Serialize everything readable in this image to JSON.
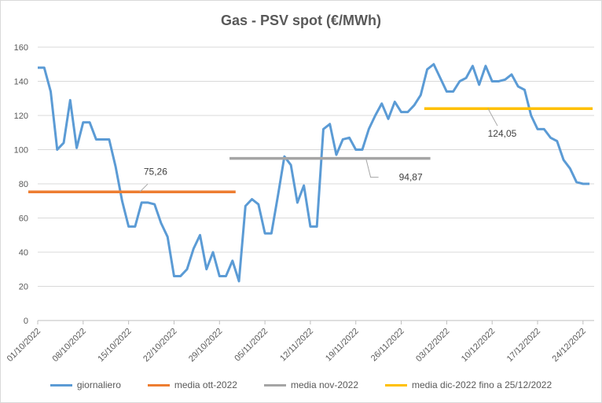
{
  "chart_data": {
    "type": "line",
    "title": "Gas - PSV spot (€/MWh)",
    "xlabel": "",
    "ylabel": "",
    "ylim": [
      0,
      160
    ],
    "yticks": [
      0,
      20,
      40,
      60,
      80,
      100,
      120,
      140,
      160
    ],
    "grid": true,
    "legend_position": "bottom",
    "x_start": "01/10/2022",
    "x_end": "25/12/2022",
    "xtick_labels": [
      "01/10/2022",
      "08/10/2022",
      "15/10/2022",
      "22/10/2022",
      "29/10/2022",
      "05/11/2022",
      "12/11/2022",
      "19/11/2022",
      "26/11/2022",
      "03/12/2022",
      "10/12/2022",
      "17/12/2022",
      "24/12/2022"
    ],
    "series": [
      {
        "name": "giornaliero",
        "color": "#5b9bd5",
        "values": [
          148,
          148,
          134,
          100,
          104,
          129,
          101,
          116,
          116,
          106,
          106,
          106,
          90,
          70,
          55,
          55,
          69,
          69,
          68,
          57,
          49,
          26,
          26,
          30,
          42,
          50,
          30,
          40,
          26,
          26,
          35,
          23,
          67,
          71,
          68,
          51,
          51,
          73,
          96,
          91,
          69,
          79,
          55,
          55,
          112,
          115,
          97,
          106,
          107,
          100,
          100,
          112,
          120,
          127,
          118,
          128,
          122,
          122,
          126,
          132,
          147,
          150,
          142,
          134,
          134,
          140,
          142,
          149,
          138,
          149,
          140,
          140,
          141,
          144,
          137,
          135,
          120,
          112,
          112,
          107,
          105,
          94,
          89,
          81,
          80,
          80
        ]
      },
      {
        "name": "media ott-2022",
        "color": "#ed7d31",
        "value": 75.26,
        "label": "75,26",
        "from": "01/10/2022",
        "to": "31/10/2022"
      },
      {
        "name": "media nov-2022",
        "color": "#a5a5a5",
        "value": 94.87,
        "label": "94,87",
        "from": "01/11/2022",
        "to": "30/11/2022"
      },
      {
        "name": "media dic-2022 fino a 25/12/2022",
        "color": "#ffc000",
        "value": 124.05,
        "label": "124,05",
        "from": "01/12/2022",
        "to": "25/12/2022"
      }
    ]
  }
}
